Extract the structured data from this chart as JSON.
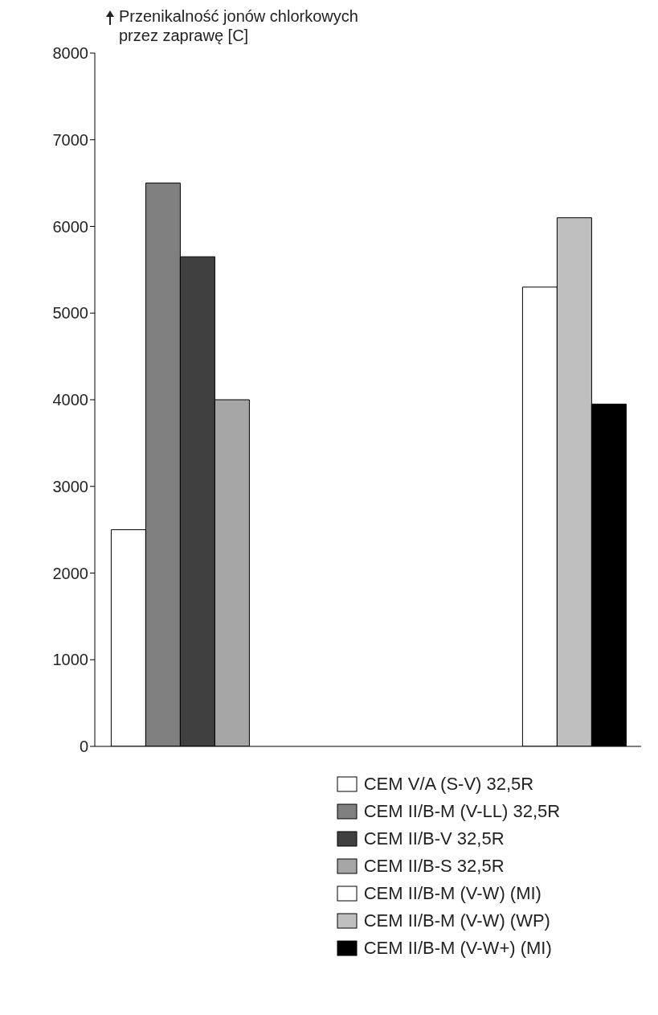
{
  "chart_data": {
    "type": "bar",
    "ylabel": "Przenikalność jonów chlorkowych przez zaprawę [C]",
    "categories": [
      null,
      null
    ],
    "series": [
      {
        "name": "CEM V/A (S-V) 32,5R",
        "color": "#ffffff",
        "values": [
          2500,
          null
        ]
      },
      {
        "name": "CEM II/B-M (V-LL) 32,5R",
        "color": "#808080",
        "values": [
          6500,
          null
        ]
      },
      {
        "name": "CEM II/B-V 32,5R",
        "color": "#404040",
        "values": [
          5650,
          null
        ]
      },
      {
        "name": "CEM II/B-S 32,5R",
        "color": "#a6a6a6",
        "values": [
          4000,
          null
        ]
      },
      {
        "name": "CEM II/B-M (V-W) (MI)",
        "color": "#ffffff",
        "values": [
          null,
          5300
        ]
      },
      {
        "name": "CEM II/B-M (V-W) (WP)",
        "color": "#bfbfbf",
        "values": [
          null,
          6100
        ]
      },
      {
        "name": "CEM II/B-M (V-W+) (MI)",
        "color": "#000000",
        "values": [
          null,
          3950
        ]
      }
    ],
    "ylim": [
      0,
      8000
    ],
    "yticks": [
      0,
      1000,
      2000,
      3000,
      4000,
      5000,
      6000,
      7000,
      8000
    ],
    "grid": false,
    "legend": "bottom"
  }
}
